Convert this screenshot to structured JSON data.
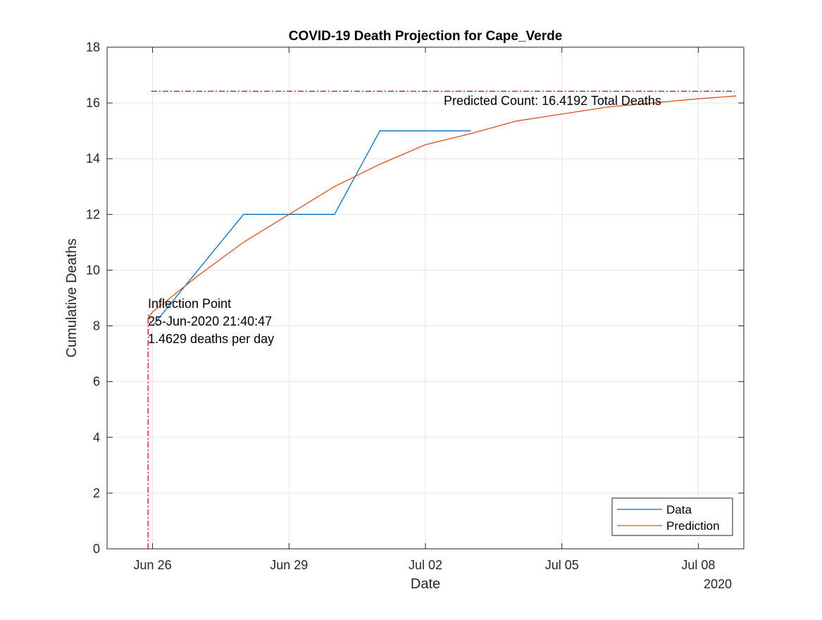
{
  "chart_data": {
    "type": "line",
    "title": "COVID-19 Death Projection for Cape_Verde",
    "xlabel": "Date",
    "ylabel": "Cumulative Deaths",
    "xlim": [
      "2020-06-25",
      "2020-07-09"
    ],
    "ylim": [
      0,
      18
    ],
    "x_ticks": [
      "2020-06-26",
      "2020-06-29",
      "2020-07-02",
      "2020-07-05",
      "2020-07-08"
    ],
    "x_tick_labels": [
      "Jun 26",
      "Jun 29",
      "Jul 02",
      "Jul 05",
      "Jul 08"
    ],
    "x_secondary_label": "2020",
    "y_ticks": [
      0,
      2,
      4,
      6,
      8,
      10,
      12,
      14,
      16,
      18
    ],
    "grid": true,
    "legend_position": "bottom-right",
    "series": [
      {
        "name": "Data",
        "color": "#0072BD",
        "x": [
          "2020-06-26",
          "2020-06-27",
          "2020-06-28",
          "2020-06-29",
          "2020-06-30",
          "2020-07-01",
          "2020-07-02",
          "2020-07-03"
        ],
        "y": [
          8,
          10,
          12,
          12,
          12,
          15,
          15,
          15
        ]
      },
      {
        "name": "Prediction",
        "color": "#D95319",
        "x": [
          "2020-06-25 21:40",
          "2020-06-26",
          "2020-06-27",
          "2020-06-28",
          "2020-06-29",
          "2020-06-30",
          "2020-07-01",
          "2020-07-02",
          "2020-07-03",
          "2020-07-04",
          "2020-07-05",
          "2020-07-06",
          "2020-07-07",
          "2020-07-08",
          "2020-07-08 20:00"
        ],
        "y": [
          8.3,
          8.5,
          9.8,
          11.0,
          12.0,
          13.0,
          13.8,
          14.5,
          14.9,
          15.35,
          15.6,
          15.85,
          16.0,
          16.15,
          16.25
        ]
      }
    ],
    "reference_lines": [
      {
        "orientation": "horizontal",
        "value": 16.4192,
        "color": "#CC0000"
      },
      {
        "orientation": "vertical",
        "value": "2020-06-25 21:40",
        "color": "#CC0000"
      }
    ],
    "annotations": {
      "predicted_count": "Predicted Count: 16.4192 Total Deaths",
      "inflection_title": "Inflection Point",
      "inflection_date": "25-Jun-2020 21:40:47",
      "inflection_rate": "1.4629 deaths per day"
    }
  }
}
